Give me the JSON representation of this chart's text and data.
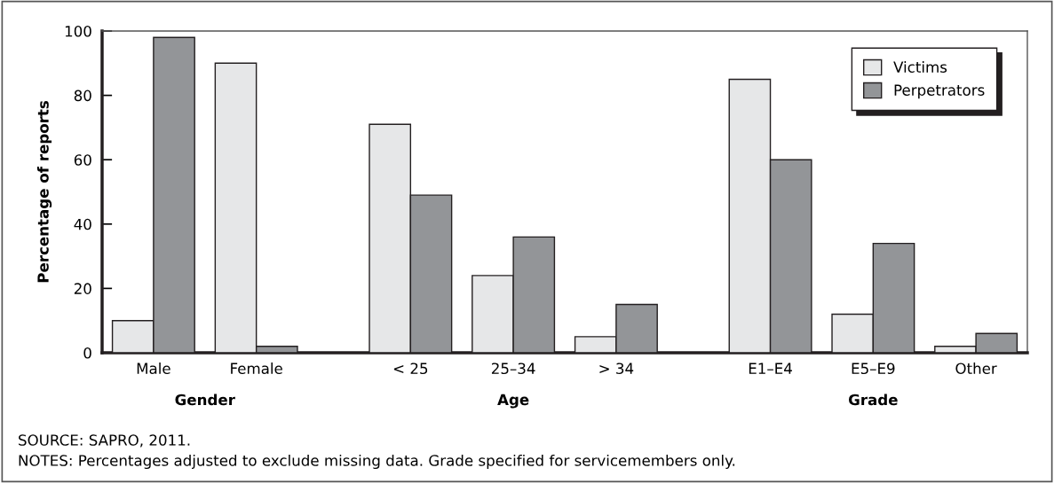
{
  "chart_data": {
    "type": "bar",
    "ylabel": "Percentage of reports",
    "categories": [
      "Male",
      "Female",
      null,
      "< 25",
      "25–34",
      "> 34",
      null,
      "E1–E4",
      "E5–E9",
      "Other"
    ],
    "series": [
      {
        "name": "Victims",
        "color": "#e6e7e8",
        "values": [
          10,
          90,
          null,
          71,
          24,
          5,
          null,
          85,
          12,
          2
        ]
      },
      {
        "name": "Perpetrators",
        "color": "#939598",
        "values": [
          98,
          2,
          null,
          49,
          36,
          15,
          null,
          60,
          34,
          6
        ]
      }
    ],
    "ylim": [
      0,
      100
    ],
    "yticks": [
      0,
      20,
      40,
      60,
      80,
      100
    ],
    "legend": "top right",
    "grid": false,
    "annotations": [
      "Gender",
      "Age",
      "Grade",
      "SOURCE: SAPRO, 2011.",
      "NOTES: Percentages adjusted to exclude missing data. Grade specified for servicemembers only."
    ]
  }
}
